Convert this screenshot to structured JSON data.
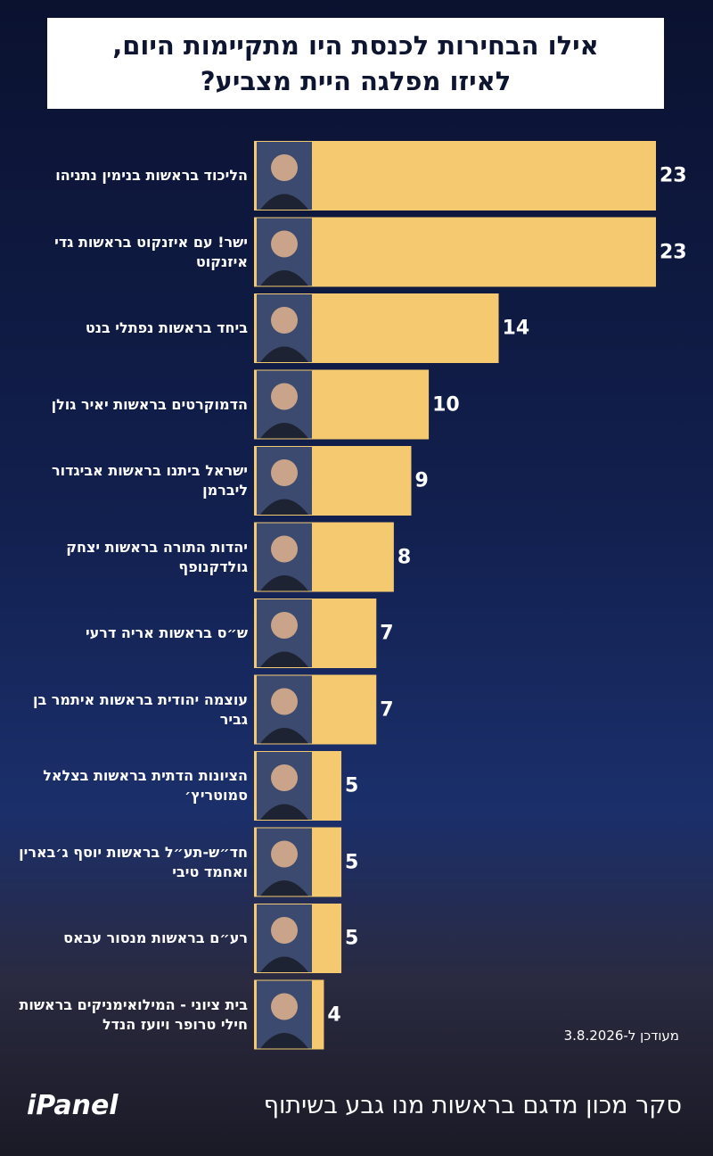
{
  "chart_data": {
    "type": "bar",
    "orientation": "horizontal",
    "title": "אילו הבחירות לכנסת היו מתקיימות היום, לאיזו מפלגה היית מצביע?",
    "categories": [
      "הליכוד בראשות בנימין נתניהו",
      "ישר! עם איזנקוט בראשות גדי איזנקוט",
      "ביחד בראשות נפתלי בנט",
      "הדמוקרטים בראשות יאיר גולן",
      "ישראל ביתנו בראשות אביגדור ליברמן",
      "יהדות התורה בראשות יצחק גולדקנופף",
      "ש״ס בראשות אריה דרעי",
      "עוצמה יהודית בראשות איתמר בן גביר",
      "הציונות הדתית בראשות בצלאל סמוטריץ׳",
      "חד״ש-תע״ל בראשות יוסף ג׳בארין ואחמד טיבי",
      "רע״ם בראשות מנסור עבאס",
      "בית ציוני - המילואימניקים בראשות חילי טרופר ויועז הנדל"
    ],
    "values": [
      23,
      23,
      14,
      10,
      9,
      8,
      7,
      7,
      5,
      5,
      5,
      4
    ],
    "color": "#f4c96f",
    "note": "מעודכן ל-3.8.2026",
    "source": "סקר מכון מדגם בראשות מנו גבע בשיתוף",
    "partner": "iPanel"
  }
}
